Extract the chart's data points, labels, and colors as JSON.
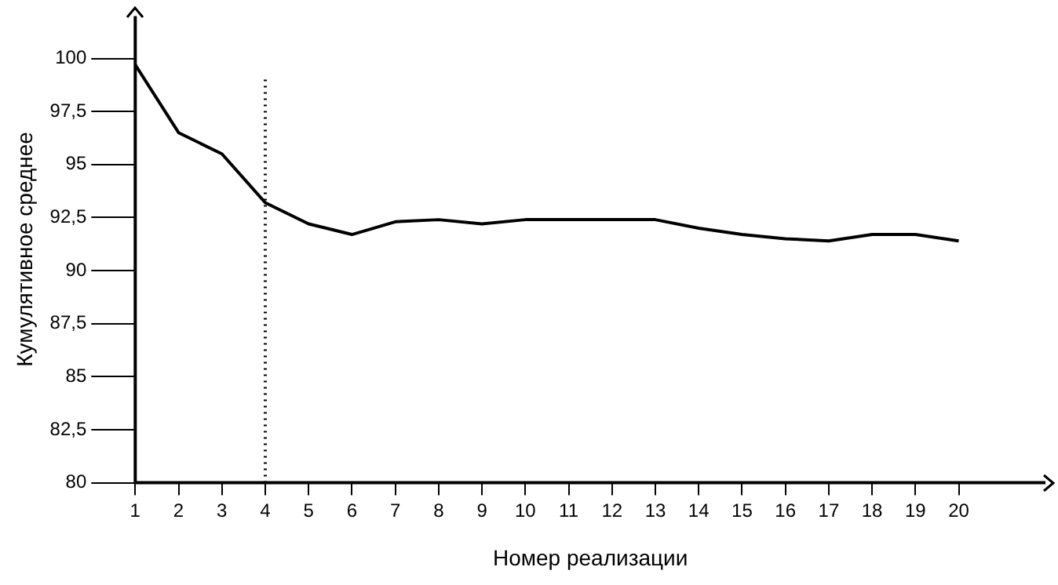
{
  "chart_data": {
    "type": "line",
    "xlabel": "Номер реализации",
    "ylabel": "Кумулятивное среднее",
    "x": [
      1,
      2,
      3,
      4,
      5,
      6,
      7,
      8,
      9,
      10,
      11,
      12,
      13,
      14,
      15,
      16,
      17,
      18,
      19,
      20
    ],
    "series": [
      {
        "color": "#000000",
        "values": [
          99.7,
          96.5,
          95.5,
          93.2,
          92.2,
          91.7,
          92.3,
          92.4,
          92.2,
          92.4,
          92.4,
          92.4,
          92.4,
          92.0,
          91.7,
          91.5,
          91.4,
          91.7,
          91.7,
          91.4
        ]
      }
    ],
    "xlim": [
      1,
      22
    ],
    "xticks": [
      1,
      2,
      3,
      4,
      5,
      6,
      7,
      8,
      9,
      10,
      11,
      12,
      13,
      14,
      15,
      16,
      17,
      18,
      19,
      20
    ],
    "ylim": [
      80,
      102
    ],
    "yticks": [
      80,
      {
        "value": 82.5,
        "label": "82,5"
      },
      85,
      {
        "value": 87.5,
        "label": "87,5"
      },
      90,
      {
        "value": 92.5,
        "label": "92,5"
      },
      95,
      {
        "value": 97.5,
        "label": "97,5"
      },
      100
    ],
    "ref_lines": [
      {
        "axis": "x",
        "value": 4,
        "line_style": "dotted",
        "color": "#000000"
      }
    ],
    "grid": false,
    "legend": false,
    "marker": "none",
    "line_style": "solid"
  }
}
